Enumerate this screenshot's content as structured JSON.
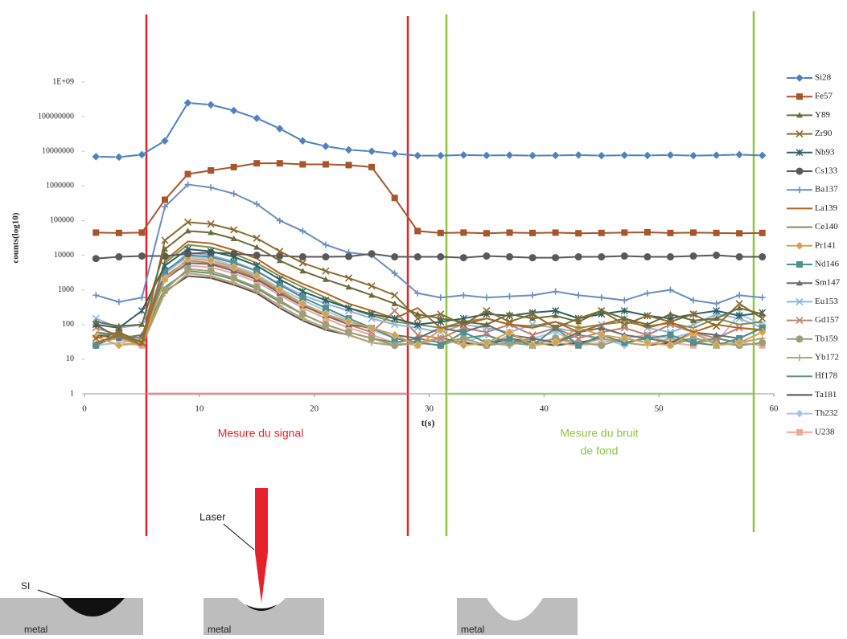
{
  "chart_data": {
    "type": "line",
    "log_y": true,
    "grid": false,
    "legend": "right",
    "ylabel": "counts(log10)",
    "xlabel": "t(s)",
    "signal_label": "Mesure du signal",
    "noise_label": [
      "Mesure du bruit",
      "de fond"
    ],
    "xlim": [
      0,
      60
    ],
    "xticks": [
      0,
      10,
      20,
      30,
      40,
      50,
      60
    ],
    "ylim": [
      1,
      1000000000
    ],
    "yticks": [
      1,
      10,
      100,
      1000,
      10000,
      100000,
      1000000,
      10000000,
      100000000,
      {
        "value": 1000000000,
        "label": "1E+09"
      }
    ],
    "x": [
      1,
      3,
      5,
      7,
      9,
      11,
      13,
      15,
      17,
      19,
      21,
      23,
      25,
      27,
      29,
      31,
      33,
      35,
      37,
      39,
      41,
      43,
      45,
      47,
      49,
      51,
      53,
      55,
      57,
      59
    ],
    "series": [
      {
        "name": "Si28",
        "color": "#4f81bd",
        "marker": "diamond",
        "values": [
          7000000,
          6800000,
          8000000,
          20000000,
          250000000,
          220000000,
          150000000,
          90000000,
          45000000,
          20000000,
          14000000,
          11000000,
          10000000,
          8500000,
          7500000,
          7500000,
          7800000,
          7600000,
          7700000,
          7500000,
          7600000,
          7800000,
          7500000,
          7700000,
          7600000,
          7800000,
          7500000,
          7700000,
          8000000,
          7600000
        ]
      },
      {
        "name": "Fe57",
        "color": "#a9542b",
        "marker": "square",
        "values": [
          45000,
          44000,
          45000,
          400000,
          2200000,
          2800000,
          3500000,
          4500000,
          4500000,
          4200000,
          4200000,
          4000000,
          3500000,
          450000,
          50000,
          44000,
          45000,
          43000,
          45000,
          44000,
          45000,
          43000,
          44000,
          45000,
          46000,
          44000,
          45000,
          44000,
          43000,
          44000
        ]
      },
      {
        "name": "Y89",
        "color": "#6b6b3a",
        "marker": "triangle",
        "values": [
          120,
          90,
          100,
          15000,
          50000,
          45000,
          30000,
          17000,
          7000,
          3500,
          2000,
          1200,
          700,
          400,
          200,
          150,
          120,
          100,
          200,
          150,
          180,
          120,
          250,
          150,
          100,
          200,
          130,
          150,
          300,
          200
        ]
      },
      {
        "name": "Zr90",
        "color": "#8b6b2f",
        "marker": "x",
        "values": [
          40,
          60,
          30,
          27000,
          90000,
          80000,
          54000,
          31000,
          13000,
          6000,
          3500,
          2200,
          1300,
          700,
          150,
          200,
          100,
          250,
          120,
          200,
          80,
          150,
          250,
          100,
          180,
          120,
          200,
          90,
          400,
          150
        ]
      },
      {
        "name": "Nb93",
        "color": "#2f5f5f",
        "marker": "asterisk",
        "values": [
          100,
          80,
          250,
          5000,
          15000,
          13000,
          9000,
          5000,
          2000,
          900,
          500,
          300,
          200,
          150,
          100,
          120,
          150,
          200,
          180,
          220,
          250,
          150,
          200,
          250,
          180,
          150,
          200,
          250,
          180,
          220
        ]
      },
      {
        "name": "Cs133",
        "color": "#595959",
        "marker": "circle",
        "values": [
          8000,
          9000,
          9500,
          9500,
          11000,
          12000,
          11000,
          10000,
          9500,
          9000,
          9000,
          9200,
          11000,
          9000,
          9000,
          9000,
          8500,
          9500,
          9000,
          8500,
          8500,
          9000,
          9000,
          9500,
          9000,
          9000,
          9500,
          10000,
          9000,
          9000
        ]
      },
      {
        "name": "Ba137",
        "color": "#6a8ec0",
        "marker": "plus",
        "values": [
          700,
          450,
          600,
          250000,
          1100000,
          900000,
          600000,
          300000,
          100000,
          50000,
          20000,
          12000,
          10000,
          3000,
          800,
          600,
          700,
          600,
          650,
          700,
          900,
          700,
          600,
          500,
          800,
          1000,
          500,
          400,
          700,
          600
        ]
      },
      {
        "name": "La139",
        "color": "#b5651d",
        "marker": "none",
        "values": [
          30,
          50,
          25,
          7000,
          25000,
          22000,
          14000,
          8000,
          3000,
          1500,
          800,
          400,
          250,
          150,
          300,
          80,
          100,
          150,
          100,
          80,
          120,
          60,
          100,
          150,
          80,
          120,
          60,
          100,
          80,
          70
        ]
      },
      {
        "name": "Ce140",
        "color": "#7f8f4f",
        "marker": "none",
        "values": [
          60,
          50,
          40,
          6000,
          20000,
          17000,
          11000,
          6000,
          2500,
          1200,
          600,
          300,
          180,
          120,
          100,
          80,
          120,
          150,
          100,
          90,
          120,
          80,
          100,
          120,
          90,
          110,
          80,
          150,
          100,
          120
        ]
      },
      {
        "name": "Pr141",
        "color": "#d4a24c",
        "marker": "diamond",
        "values": [
          45,
          25,
          30,
          2000,
          8000,
          7000,
          4500,
          2500,
          1000,
          400,
          200,
          120,
          80,
          50,
          25,
          70,
          25,
          30,
          60,
          25,
          30,
          80,
          50,
          40,
          30,
          25,
          60,
          25,
          30,
          60
        ]
      },
      {
        "name": "Nd146",
        "color": "#4f8f8f",
        "marker": "square",
        "values": [
          25,
          50,
          30,
          3500,
          10000,
          9000,
          6000,
          3500,
          1400,
          600,
          300,
          150,
          80,
          40,
          30,
          25,
          60,
          30,
          40,
          25,
          80,
          25,
          50,
          30,
          40,
          50,
          30,
          25,
          40,
          80
        ]
      },
      {
        "name": "Sm147",
        "color": "#6b6b6b",
        "marker": "triangle",
        "values": [
          100,
          40,
          50,
          2000,
          6000,
          5500,
          3500,
          2000,
          800,
          350,
          180,
          100,
          80,
          50,
          40,
          80,
          60,
          100,
          50,
          40,
          30,
          60,
          80,
          50,
          40,
          30,
          60,
          50,
          40,
          80
        ]
      },
      {
        "name": "Eu153",
        "color": "#8fb4e0",
        "marker": "x",
        "values": [
          150,
          80,
          100,
          3000,
          12000,
          10000,
          6500,
          3500,
          1500,
          700,
          400,
          250,
          150,
          100,
          80,
          60,
          100,
          80,
          60,
          100,
          80,
          60,
          100,
          150,
          80,
          60,
          100,
          200,
          150,
          80
        ]
      },
      {
        "name": "Gd157",
        "color": "#c08070",
        "marker": "x",
        "values": [
          80,
          50,
          40,
          2500,
          7000,
          6000,
          4000,
          2200,
          900,
          400,
          200,
          100,
          60,
          250,
          50,
          40,
          80,
          60,
          100,
          50,
          80,
          40,
          60,
          80,
          50,
          100,
          60,
          40,
          80,
          70
        ]
      },
      {
        "name": "Tb159",
        "color": "#9aa07a",
        "marker": "circle",
        "values": [
          25,
          60,
          30,
          1000,
          4000,
          3500,
          2200,
          1200,
          500,
          200,
          100,
          60,
          40,
          25,
          30,
          25,
          40,
          25,
          30,
          25,
          40,
          30,
          25,
          40,
          30,
          25,
          40,
          30,
          25,
          30
        ]
      },
      {
        "name": "Yb172",
        "color": "#c0a070",
        "marker": "plus",
        "values": [
          30,
          40,
          25,
          800,
          3000,
          2500,
          1600,
          900,
          350,
          150,
          80,
          50,
          30,
          25,
          30,
          40,
          25,
          30,
          25,
          40,
          30,
          25,
          40,
          30,
          25,
          40,
          30,
          25,
          30,
          40
        ]
      },
      {
        "name": "Hf178",
        "color": "#5f8f7f",
        "marker": "none",
        "values": [
          60,
          40,
          30,
          1200,
          3500,
          3000,
          2000,
          1100,
          450,
          200,
          100,
          60,
          40,
          30,
          40,
          30,
          40,
          50,
          30,
          40,
          30,
          50,
          40,
          30,
          40,
          50,
          30,
          40,
          30,
          40
        ]
      },
      {
        "name": "Ta181",
        "color": "#505050",
        "marker": "none",
        "values": [
          50,
          40,
          30,
          900,
          2500,
          2200,
          1400,
          800,
          300,
          130,
          70,
          50,
          30,
          25,
          30,
          40,
          30,
          25,
          40,
          30,
          25,
          30,
          40,
          30,
          25,
          30,
          40,
          30,
          25,
          30
        ]
      },
      {
        "name": "Th232",
        "color": "#a9c4e8",
        "marker": "diamond",
        "values": [
          25,
          30,
          40,
          3000,
          9000,
          8000,
          5000,
          2800,
          1100,
          500,
          250,
          130,
          70,
          40,
          30,
          40,
          30,
          50,
          25,
          40,
          60,
          30,
          40,
          25,
          50,
          40,
          60,
          30,
          200,
          100
        ]
      },
      {
        "name": "U238",
        "color": "#f0a898",
        "marker": "square",
        "values": [
          25,
          30,
          25,
          2500,
          5000,
          4500,
          3000,
          1700,
          700,
          300,
          150,
          80,
          50,
          30,
          25,
          40,
          30,
          25,
          50,
          30,
          40,
          25,
          30,
          40,
          50,
          30,
          25,
          40,
          30,
          25
        ]
      }
    ]
  },
  "diagram": {
    "laser_label": "Laser",
    "si_label": "SI",
    "metal_labels": [
      "metal",
      "metal",
      "metal"
    ]
  }
}
